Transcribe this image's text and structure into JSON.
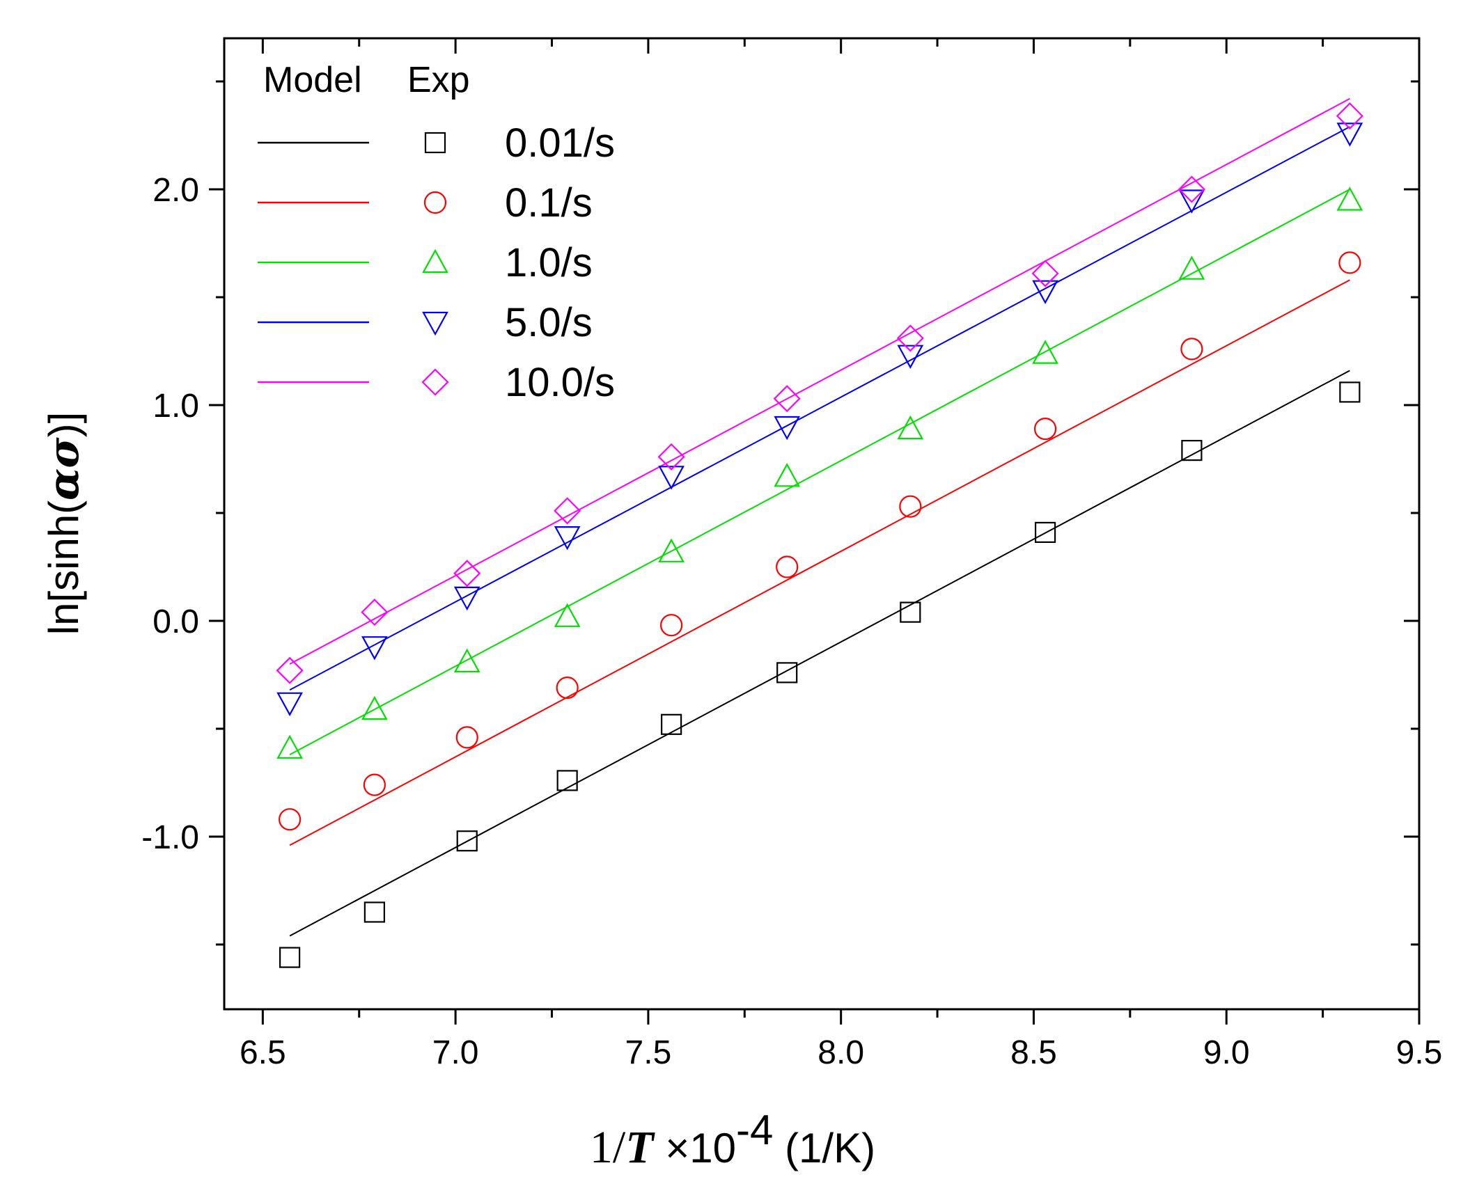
{
  "chart_data": {
    "type": "scatter",
    "title": "",
    "xlabel": {
      "prefix": "1/",
      "var": "T",
      "times": " ×10",
      "exp": "-4",
      "unit": " (1/K)"
    },
    "ylabel": {
      "prefix": "ln[sinh(",
      "greek": "ασ",
      "suffix": ")]"
    },
    "xlim": [
      6.4,
      9.5
    ],
    "ylim": [
      -1.8,
      2.7
    ],
    "xticks": [
      6.5,
      7.0,
      7.5,
      8.0,
      8.5,
      9.0,
      9.5
    ],
    "xtick_labels": [
      "6.5",
      "7.0",
      "7.5",
      "8.0",
      "8.5",
      "9.0",
      "9.5"
    ],
    "yticks": [
      -1.0,
      0.0,
      1.0,
      2.0
    ],
    "ytick_labels": [
      "-1.0",
      "0.0",
      "1.0",
      "2.0"
    ],
    "legend": {
      "position": "top-left",
      "model_header": "Model",
      "exp_header": "Exp"
    },
    "x": [
      6.57,
      6.79,
      7.03,
      7.29,
      7.56,
      7.86,
      8.18,
      8.53,
      8.91,
      9.32
    ],
    "series": [
      {
        "name": "0.01/s",
        "color": "#000000",
        "marker": "square",
        "exp_values": [
          -1.56,
          -1.35,
          -1.02,
          -0.74,
          -0.48,
          -0.24,
          0.04,
          0.41,
          0.79,
          1.06
        ],
        "model_line": [
          [
            6.57,
            -1.46
          ],
          [
            9.32,
            1.16
          ]
        ]
      },
      {
        "name": "0.1/s",
        "color": "#ff0000",
        "marker": "circle",
        "exp_values": [
          -0.92,
          -0.76,
          -0.54,
          -0.31,
          -0.02,
          0.25,
          0.53,
          0.89,
          1.26,
          1.66
        ],
        "model_line": [
          [
            6.57,
            -1.04
          ],
          [
            9.32,
            1.58
          ]
        ]
      },
      {
        "name": "1.0/s",
        "color": "#00e000",
        "marker": "triangle-up",
        "exp_values": [
          -0.59,
          -0.41,
          -0.19,
          0.02,
          0.32,
          0.67,
          0.89,
          1.24,
          1.63,
          1.95
        ],
        "model_line": [
          [
            6.57,
            -0.62
          ],
          [
            9.32,
            2.0
          ]
        ]
      },
      {
        "name": "5.0/s",
        "color": "#0000ff",
        "marker": "triangle-down",
        "exp_values": [
          -0.38,
          -0.12,
          0.11,
          0.39,
          0.67,
          0.9,
          1.23,
          1.53,
          1.95,
          2.26
        ],
        "model_line": [
          [
            6.57,
            -0.32
          ],
          [
            9.32,
            2.29
          ]
        ]
      },
      {
        "name": "10.0/s",
        "color": "#ff00ff",
        "marker": "diamond",
        "exp_values": [
          -0.23,
          0.04,
          0.22,
          0.51,
          0.76,
          1.03,
          1.31,
          1.61,
          2.0,
          2.34
        ],
        "model_line": [
          [
            6.57,
            -0.2
          ],
          [
            9.32,
            2.42
          ]
        ]
      }
    ]
  }
}
